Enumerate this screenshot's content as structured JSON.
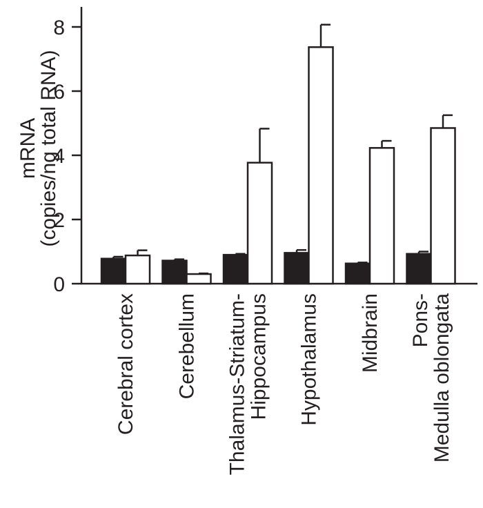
{
  "chart_data": {
    "type": "bar",
    "categories": [
      [
        "Cerebral cortex"
      ],
      [
        "Cerebellum"
      ],
      [
        "Thalamus-Striatum-",
        "Hippocampus"
      ],
      [
        "Hypothalamus"
      ],
      [
        "Midbrain"
      ],
      [
        "Pons-",
        "Medulla oblongata"
      ]
    ],
    "ylabel": [
      "mRNA",
      "(copies/ng total RNA)"
    ],
    "xlabel": "",
    "title": "",
    "ylim": [
      0,
      8.6
    ],
    "yticks": [
      0,
      2,
      4,
      6,
      8
    ],
    "legend": "none",
    "grid": false,
    "series": [
      {
        "color": "#231f20",
        "values": [
          0.78,
          0.72,
          0.9,
          0.96,
          0.63,
          0.93
        ],
        "errors": [
          0.06,
          0.04,
          0.03,
          0.09,
          0.03,
          0.07
        ]
      },
      {
        "color": "#ffffff",
        "values": [
          0.88,
          0.3,
          3.77,
          7.37,
          4.23,
          4.85
        ],
        "errors": [
          0.16,
          0.02,
          1.06,
          0.7,
          0.22,
          0.4
        ]
      }
    ]
  }
}
